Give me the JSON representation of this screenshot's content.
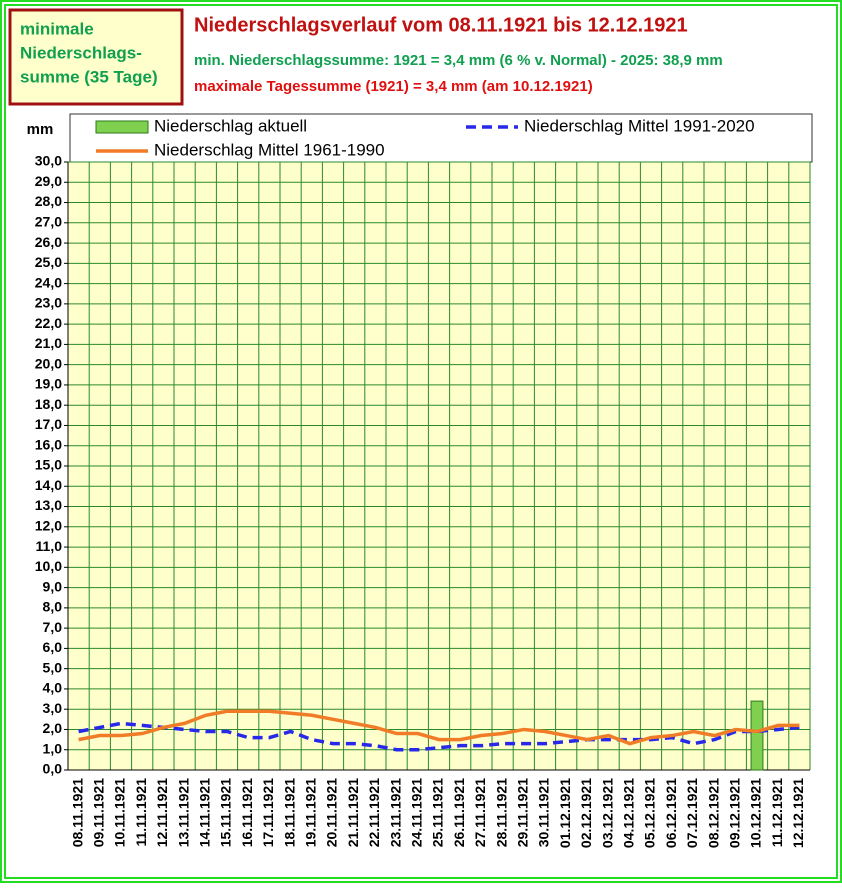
{
  "chart_data": {
    "type": "bar",
    "title": "Niederschlagsverlauf vom 08.11.1921 bis 12.12.1921",
    "subtitle": "min. Niederschlagssumme: 1921 = 3,4 mm (6 % v. Normal) - 2025: 38,9 mm",
    "annotation": "maximale Tagessumme (1921) = 3,4 mm (am 10.12.1921)",
    "box_text": [
      "minimale",
      "Niederschlags-",
      "summe (35 Tage)"
    ],
    "y_label": "mm",
    "categories": [
      "08.11.1921",
      "09.11.1921",
      "10.11.1921",
      "11.11.1921",
      "12.11.1921",
      "13.11.1921",
      "14.11.1921",
      "15.11.1921",
      "16.11.1921",
      "17.11.1921",
      "18.11.1921",
      "19.11.1921",
      "20.11.1921",
      "21.11.1921",
      "22.11.1921",
      "23.11.1921",
      "24.11.1921",
      "25.11.1921",
      "26.11.1921",
      "27.11.1921",
      "28.11.1921",
      "29.11.1921",
      "30.11.1921",
      "01.12.1921",
      "02.12.1921",
      "03.12.1921",
      "04.12.1921",
      "05.12.1921",
      "06.12.1921",
      "07.12.1921",
      "08.12.1921",
      "09.12.1921",
      "10.12.1921",
      "11.12.1921",
      "12.12.1921"
    ],
    "series": [
      {
        "name": "Niederschlag aktuell",
        "type": "bar",
        "color": "#80d050",
        "values": [
          0,
          0,
          0,
          0,
          0,
          0,
          0,
          0,
          0,
          0,
          0,
          0,
          0,
          0,
          0,
          0,
          0,
          0,
          0,
          0,
          0,
          0,
          0,
          0,
          0,
          0,
          0,
          0,
          0,
          0,
          0,
          0,
          3.4,
          0,
          0
        ]
      },
      {
        "name": "Niederschlag Mittel 1991-2020",
        "type": "line",
        "style": "dashed",
        "color": "#2828e8",
        "values": [
          1.9,
          2.1,
          2.3,
          2.2,
          2.1,
          2.0,
          1.9,
          1.9,
          1.6,
          1.6,
          1.9,
          1.5,
          1.3,
          1.3,
          1.2,
          1.0,
          1.0,
          1.1,
          1.2,
          1.2,
          1.3,
          1.3,
          1.3,
          1.4,
          1.5,
          1.5,
          1.5,
          1.5,
          1.6,
          1.3,
          1.5,
          1.9,
          1.9,
          2.0,
          2.1
        ]
      },
      {
        "name": "Niederschlag Mittel 1961-1990",
        "type": "line",
        "style": "solid",
        "color": "#f07c28",
        "values": [
          1.5,
          1.7,
          1.7,
          1.8,
          2.1,
          2.3,
          2.7,
          2.9,
          2.9,
          2.9,
          2.8,
          2.7,
          2.5,
          2.3,
          2.1,
          1.8,
          1.8,
          1.5,
          1.5,
          1.7,
          1.8,
          2.0,
          1.9,
          1.7,
          1.5,
          1.7,
          1.3,
          1.6,
          1.7,
          1.9,
          1.7,
          2.0,
          1.9,
          2.2,
          2.2
        ]
      }
    ],
    "ylim": [
      0,
      30
    ],
    "yticks": [
      {
        "value": 0,
        "label": "0,0"
      },
      {
        "value": 1,
        "label": "1,0"
      },
      {
        "value": 2,
        "label": "2,0"
      },
      {
        "value": 3,
        "label": "3,0"
      },
      {
        "value": 4,
        "label": "4,0"
      },
      {
        "value": 5,
        "label": "5,0"
      },
      {
        "value": 6,
        "label": "6,0"
      },
      {
        "value": 7,
        "label": "7,0"
      },
      {
        "value": 8,
        "label": "8,0"
      },
      {
        "value": 9,
        "label": "9,0"
      },
      {
        "value": 10,
        "label": "10,0"
      },
      {
        "value": 11,
        "label": "11,0"
      },
      {
        "value": 12,
        "label": "12,0"
      },
      {
        "value": 13,
        "label": "13,0"
      },
      {
        "value": 14,
        "label": "14,0"
      },
      {
        "value": 15,
        "label": "15,0"
      },
      {
        "value": 16,
        "label": "16,0"
      },
      {
        "value": 17,
        "label": "17,0"
      },
      {
        "value": 18,
        "label": "18,0"
      },
      {
        "value": 19,
        "label": "19,0"
      },
      {
        "value": 20,
        "label": "20,0"
      },
      {
        "value": 21,
        "label": "21,0"
      },
      {
        "value": 22,
        "label": "22,0"
      },
      {
        "value": 23,
        "label": "23,0"
      },
      {
        "value": 24,
        "label": "24,0"
      },
      {
        "value": 25,
        "label": "25,0"
      },
      {
        "value": 26,
        "label": "26,0"
      },
      {
        "value": 27,
        "label": "27,0"
      },
      {
        "value": 28,
        "label": "28,0"
      },
      {
        "value": 29,
        "label": "29,0"
      },
      {
        "value": 30,
        "label": "30,0"
      }
    ],
    "grid": true
  }
}
